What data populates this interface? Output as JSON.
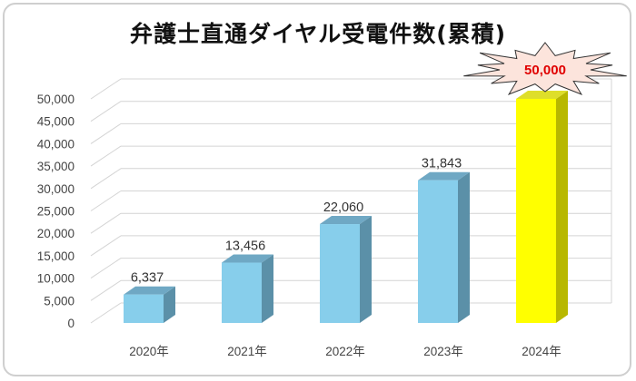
{
  "chart_data": {
    "type": "bar",
    "title": "弁護士直通ダイヤル受電件数(累積)",
    "categories": [
      "2020年",
      "2021年",
      "2022年",
      "2023年",
      "2024年"
    ],
    "values": [
      6337,
      13456,
      22060,
      31843,
      50000
    ],
    "value_labels": [
      "6,337",
      "13,456",
      "22,060",
      "31,843",
      "50,000"
    ],
    "ylim": [
      0,
      50000
    ],
    "y_ticks": [
      "0",
      "5,000",
      "10,000",
      "15,000",
      "20,000",
      "25,000",
      "30,000",
      "35,000",
      "40,000",
      "45,000",
      "50,000"
    ],
    "grid": true,
    "style": "3d",
    "colors": {
      "bar": "#87ceeb",
      "bar_side": "#5b90a8",
      "bar_top": "#6fa8c4",
      "highlight_bar": "#ffff00",
      "highlight_side": "#b8b800",
      "highlight_top": "#dede2a",
      "burst_fill": "#fce4dc",
      "burst_label": "#e00000"
    },
    "highlight_index": 4
  }
}
